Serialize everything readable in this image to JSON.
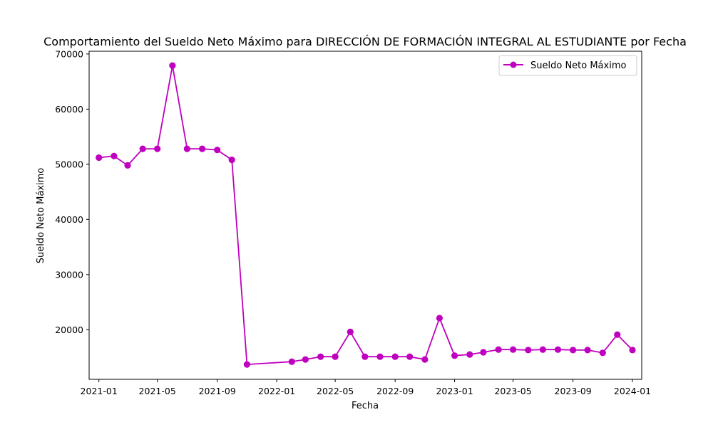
{
  "chart_data": {
    "type": "line",
    "title": "Comportamiento del Sueldo Neto Máximo para DIRECCIÓN DE FORMACIÓN INTEGRAL AL ESTUDIANTE por Fecha",
    "xlabel": "Fecha",
    "ylabel": "Sueldo Neto Máximo",
    "x_ticks": [
      "2021-01",
      "2021-05",
      "2021-09",
      "2022-01",
      "2022-05",
      "2022-09",
      "2023-01",
      "2023-05",
      "2023-09",
      "2024-01"
    ],
    "y_ticks": [
      20000,
      30000,
      40000,
      50000,
      60000,
      70000
    ],
    "ylim": [
      11000,
      70500
    ],
    "xlim": [
      "2020-12-12",
      "2024-01-20"
    ],
    "legend_position": "top-right",
    "grid": false,
    "color": "#bf00bf",
    "series": [
      {
        "name": "Sueldo Neto Máximo",
        "x": [
          "2021-01-01",
          "2021-02-01",
          "2021-03-01",
          "2021-04-01",
          "2021-05-01",
          "2021-06-01",
          "2021-07-01",
          "2021-08-01",
          "2021-09-01",
          "2021-10-01",
          "2021-11-01",
          "2022-02-01",
          "2022-03-01",
          "2022-04-01",
          "2022-05-01",
          "2022-06-01",
          "2022-07-01",
          "2022-08-01",
          "2022-09-01",
          "2022-10-01",
          "2022-11-01",
          "2022-12-01",
          "2023-01-01",
          "2023-02-01",
          "2023-03-01",
          "2023-04-01",
          "2023-05-01",
          "2023-06-01",
          "2023-07-01",
          "2023-08-01",
          "2023-09-01",
          "2023-10-01",
          "2023-11-01",
          "2023-12-01",
          "2024-01-01"
        ],
        "values": [
          51200,
          51500,
          49800,
          52800,
          52800,
          67900,
          52800,
          52800,
          52600,
          50800,
          13700,
          14200,
          14600,
          15100,
          15100,
          19600,
          15100,
          15100,
          15100,
          15100,
          14600,
          22100,
          15300,
          15500,
          15900,
          16400,
          16400,
          16300,
          16400,
          16400,
          16300,
          16300,
          15800,
          19100,
          16300
        ]
      }
    ]
  }
}
